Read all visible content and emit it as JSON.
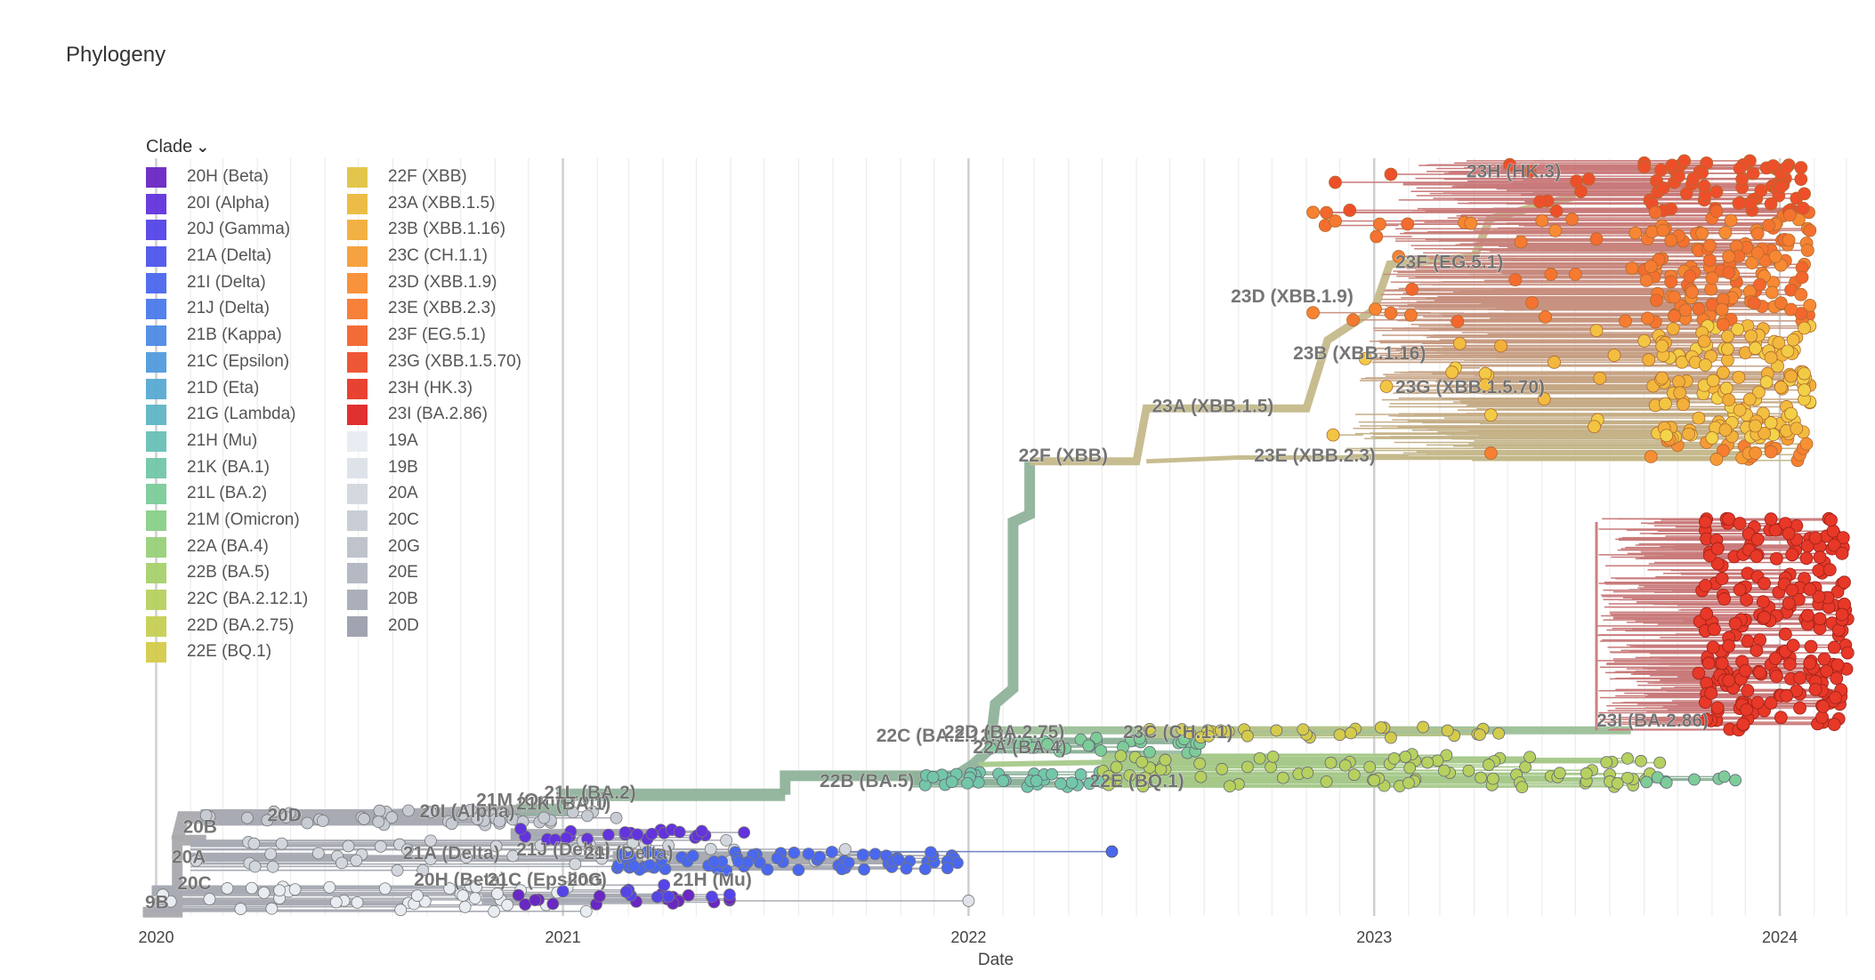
{
  "title": "Phylogeny",
  "legend": {
    "title": "Clade",
    "items": [
      {
        "label": "20H (Beta)",
        "color": "#6A27C3"
      },
      {
        "label": "20I (Alpha)",
        "color": "#6333DD"
      },
      {
        "label": "20J (Gamma)",
        "color": "#5544E8"
      },
      {
        "label": "21A (Delta)",
        "color": "#4F56EE"
      },
      {
        "label": "21I (Delta)",
        "color": "#4A68EF"
      },
      {
        "label": "21J (Delta)",
        "color": "#4B7AEC"
      },
      {
        "label": "21B (Kappa)",
        "color": "#4D8BE6"
      },
      {
        "label": "21C (Epsilon)",
        "color": "#529BDE"
      },
      {
        "label": "21D (Eta)",
        "color": "#58AAD3"
      },
      {
        "label": "21G (Lambda)",
        "color": "#5FB6C6"
      },
      {
        "label": "21H (Mu)",
        "color": "#68C0B8"
      },
      {
        "label": "21K (BA.1)",
        "color": "#72C7A8"
      },
      {
        "label": "21L (BA.2)",
        "color": "#7DCC99"
      },
      {
        "label": "21M (Omicron)",
        "color": "#8ACF89"
      },
      {
        "label": "22A (BA.4)",
        "color": "#98D17A"
      },
      {
        "label": "22B (BA.5)",
        "color": "#A7D16C"
      },
      {
        "label": "22C (BA.2.12.1)",
        "color": "#B6D15F"
      },
      {
        "label": "22D (BA.2.75)",
        "color": "#C6CF54"
      },
      {
        "label": "22E (BQ.1)",
        "color": "#D4CB4B"
      },
      {
        "label": "22F (XBB)",
        "color": "#E1C443"
      },
      {
        "label": "23A (XBB.1.5)",
        "color": "#EBBA3D"
      },
      {
        "label": "23B (XBB.1.16)",
        "color": "#F2AD39"
      },
      {
        "label": "23C (CH.1.1)",
        "color": "#F69E36"
      },
      {
        "label": "23D (XBB.1.9)",
        "color": "#F88D33"
      },
      {
        "label": "23E (XBB.2.3)",
        "color": "#F77A31"
      },
      {
        "label": "23F (EG.5.1)",
        "color": "#F3652E"
      },
      {
        "label": "23G (XBB.1.5.70)",
        "color": "#EE4F2B"
      },
      {
        "label": "23H (HK.3)",
        "color": "#E73828"
      },
      {
        "label": "23I (BA.2.86)",
        "color": "#DF2525"
      },
      {
        "label": "19A",
        "color": "#E8EDF2"
      },
      {
        "label": "19B",
        "color": "#DDE2E8"
      },
      {
        "label": "20A",
        "color": "#D2D7DE"
      },
      {
        "label": "20C",
        "color": "#C7CCD4"
      },
      {
        "label": "20G",
        "color": "#BCC1CA"
      },
      {
        "label": "20E",
        "color": "#B1B6C0"
      },
      {
        "label": "20B",
        "color": "#A6ABB6"
      },
      {
        "label": "20D",
        "color": "#9BA0AC"
      }
    ]
  },
  "chart_data": {
    "type": "phylogenetic_tree",
    "xlabel": "Date",
    "ylabel": "",
    "x_ticks": [
      "2020",
      "2021",
      "2022",
      "2023",
      "2024"
    ],
    "xlim": [
      "2019-12-18",
      "2024-03-05"
    ],
    "grid": true,
    "legend_position": "top-left",
    "clade_labels": [
      {
        "label": "9B",
        "x": "2019-12-22",
        "y_rank": 0.01
      },
      {
        "label": "20C",
        "x": "2020-01-20",
        "y_rank": 0.035
      },
      {
        "label": "20A",
        "x": "2020-01-15",
        "y_rank": 0.07
      },
      {
        "label": "20B",
        "x": "2020-01-25",
        "y_rank": 0.11
      },
      {
        "label": "20D",
        "x": "2020-04-10",
        "y_rank": 0.125
      },
      {
        "label": "21M (Omicron)",
        "x": "2020-10-15",
        "y_rank": 0.145
      },
      {
        "label": "20I (Alpha)",
        "x": "2020-08-25",
        "y_rank": 0.13
      },
      {
        "label": "21K (BA.1)",
        "x": "2020-11-20",
        "y_rank": 0.14
      },
      {
        "label": "21L (BA.2)",
        "x": "2020-12-15",
        "y_rank": 0.155
      },
      {
        "label": "21A (Delta)",
        "x": "2020-08-10",
        "y_rank": 0.075
      },
      {
        "label": "21J (Delta)",
        "x": "2020-11-20",
        "y_rank": 0.08
      },
      {
        "label": "21I (Delta)",
        "x": "2021-01-20",
        "y_rank": 0.075
      },
      {
        "label": "20H (Beta)",
        "x": "2020-08-20",
        "y_rank": 0.04
      },
      {
        "label": "21C (Epsilon)",
        "x": "2020-10-25",
        "y_rank": 0.04
      },
      {
        "label": "20G",
        "x": "2021-01-05",
        "y_rank": 0.04
      },
      {
        "label": "21H (Mu)",
        "x": "2021-04-10",
        "y_rank": 0.04
      },
      {
        "label": "22B (BA.5)",
        "x": "2021-08-20",
        "y_rank": 0.17
      },
      {
        "label": "22C (BA.2.12.1)",
        "x": "2021-10-10",
        "y_rank": 0.23
      },
      {
        "label": "22D (BA.2.75)",
        "x": "2021-12-10",
        "y_rank": 0.235
      },
      {
        "label": "22A (BA.4)",
        "x": "2022-01-05",
        "y_rank": 0.215
      },
      {
        "label": "23C (CH.1.1)",
        "x": "2022-05-20",
        "y_rank": 0.235
      },
      {
        "label": "22E (BQ.1)",
        "x": "2022-04-20",
        "y_rank": 0.17
      },
      {
        "label": "23I (BA.2.86)",
        "x": "2023-07-20",
        "y_rank": 0.25
      },
      {
        "label": "22F (XBB)",
        "x": "2022-02-15",
        "y_rank": 0.6
      },
      {
        "label": "23E (XBB.2.3)",
        "x": "2022-09-15",
        "y_rank": 0.6
      },
      {
        "label": "23A (XBB.1.5)",
        "x": "2022-06-15",
        "y_rank": 0.665
      },
      {
        "label": "23G (XBB.1.5.70)",
        "x": "2023-01-20",
        "y_rank": 0.69
      },
      {
        "label": "23B (XBB.1.16)",
        "x": "2022-10-20",
        "y_rank": 0.735
      },
      {
        "label": "23D (XBB.1.9)",
        "x": "2022-08-25",
        "y_rank": 0.81
      },
      {
        "label": "23F (EG.5.1)",
        "x": "2023-01-20",
        "y_rank": 0.855
      },
      {
        "label": "23H (HK.3)",
        "x": "2023-03-25",
        "y_rank": 0.975
      }
    ]
  }
}
